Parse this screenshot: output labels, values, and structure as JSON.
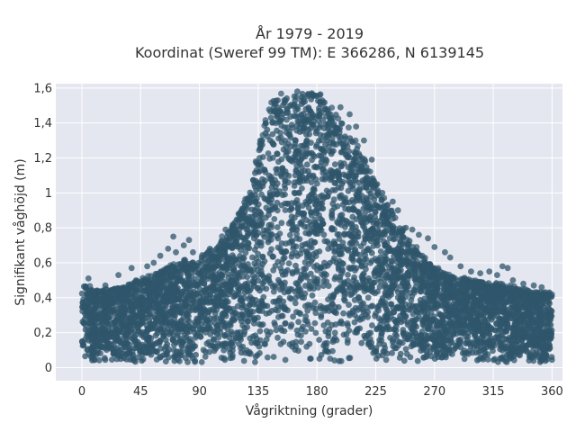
{
  "chart_data": {
    "type": "scatter",
    "title": "År 1979 - 2019",
    "subtitle": "Koordinat (Sweref 99 TM): E 366286, N 6139145",
    "xlabel": "Vågriktning (grader)",
    "ylabel": "Signifikant våghöjd (m)",
    "xlim": [
      -20,
      368
    ],
    "ylim": [
      -0.075,
      1.625
    ],
    "xticks": [
      0,
      45,
      90,
      135,
      180,
      225,
      270,
      315,
      360
    ],
    "xtick_labels": [
      "0",
      "45",
      "90",
      "135",
      "180",
      "225",
      "270",
      "315",
      "360"
    ],
    "yticks": [
      0,
      0.2,
      0.4,
      0.6,
      0.8,
      1,
      1.2,
      1.4,
      1.6
    ],
    "ytick_labels": [
      "0",
      "0,2",
      "0,4",
      "0,6",
      "0,8",
      "1",
      "1,2",
      "1,4",
      "1,6"
    ],
    "grid": true,
    "colors": {
      "marker": "#2f556b",
      "plot_bg": "#e5e7f0",
      "grid": "#ffffff"
    },
    "x_range": [
      0,
      360
    ],
    "y_min": 0.03,
    "upper_envelope": [
      [
        0,
        0.47
      ],
      [
        10,
        0.45
      ],
      [
        20,
        0.44
      ],
      [
        30,
        0.46
      ],
      [
        45,
        0.5
      ],
      [
        60,
        0.55
      ],
      [
        75,
        0.6
      ],
      [
        90,
        0.62
      ],
      [
        105,
        0.72
      ],
      [
        120,
        0.88
      ],
      [
        130,
        1.05
      ],
      [
        135,
        1.25
      ],
      [
        140,
        1.42
      ],
      [
        145,
        1.52
      ],
      [
        150,
        1.54
      ],
      [
        160,
        1.55
      ],
      [
        170,
        1.57
      ],
      [
        180,
        1.56
      ],
      [
        190,
        1.49
      ],
      [
        200,
        1.4
      ],
      [
        210,
        1.28
      ],
      [
        220,
        1.12
      ],
      [
        230,
        0.98
      ],
      [
        240,
        0.86
      ],
      [
        250,
        0.74
      ],
      [
        260,
        0.64
      ],
      [
        270,
        0.57
      ],
      [
        285,
        0.52
      ],
      [
        300,
        0.5
      ],
      [
        315,
        0.48
      ],
      [
        330,
        0.46
      ],
      [
        345,
        0.44
      ],
      [
        360,
        0.42
      ]
    ],
    "outliers": [
      [
        5,
        0.51
      ],
      [
        18,
        0.47
      ],
      [
        28,
        0.53
      ],
      [
        38,
        0.57
      ],
      [
        50,
        0.58
      ],
      [
        55,
        0.6
      ],
      [
        60,
        0.64
      ],
      [
        66,
        0.68
      ],
      [
        70,
        0.75
      ],
      [
        72,
        0.66
      ],
      [
        78,
        0.7
      ],
      [
        82,
        0.73
      ],
      [
        85,
        0.66
      ],
      [
        98,
        0.68
      ],
      [
        110,
        0.79
      ],
      [
        115,
        0.8
      ],
      [
        120,
        0.88
      ],
      [
        125,
        0.93
      ],
      [
        132,
        1.05
      ],
      [
        136,
        1.2
      ],
      [
        138,
        1.3
      ],
      [
        165,
        1.58
      ],
      [
        176,
        1.57
      ],
      [
        182,
        1.56
      ],
      [
        198,
        1.49
      ],
      [
        205,
        1.45
      ],
      [
        210,
        1.38
      ],
      [
        216,
        1.3
      ],
      [
        222,
        1.19
      ],
      [
        226,
        1.05
      ],
      [
        230,
        1.0
      ],
      [
        238,
        0.95
      ],
      [
        242,
        0.9
      ],
      [
        248,
        0.8
      ],
      [
        253,
        0.79
      ],
      [
        258,
        0.76
      ],
      [
        265,
        0.74
      ],
      [
        270,
        0.69
      ],
      [
        278,
        0.66
      ],
      [
        282,
        0.63
      ],
      [
        290,
        0.58
      ],
      [
        298,
        0.55
      ],
      [
        305,
        0.54
      ],
      [
        312,
        0.55
      ],
      [
        318,
        0.53
      ],
      [
        322,
        0.58
      ],
      [
        326,
        0.57
      ],
      [
        330,
        0.5
      ],
      [
        338,
        0.48
      ],
      [
        346,
        0.47
      ],
      [
        352,
        0.46
      ],
      [
        358,
        0.43
      ]
    ]
  }
}
